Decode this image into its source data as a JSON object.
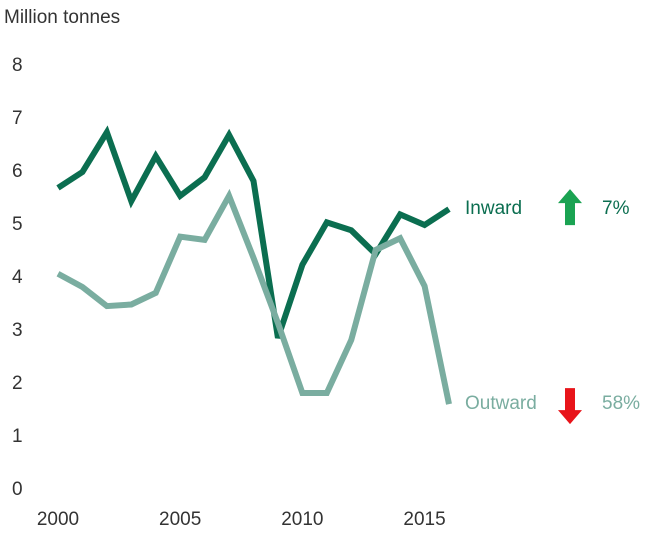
{
  "chart_data": {
    "type": "line",
    "title": "Million tonnes",
    "x": [
      2000,
      2001,
      2002,
      2003,
      2004,
      2005,
      2006,
      2007,
      2008,
      2009,
      2010,
      2011,
      2012,
      2013,
      2014,
      2015,
      2016
    ],
    "xlim": [
      2000,
      2016
    ],
    "xticks": [
      2000,
      2005,
      2010,
      2015
    ],
    "ylim": [
      0,
      8
    ],
    "yticks": [
      0,
      1,
      2,
      3,
      4,
      5,
      6,
      7,
      8
    ],
    "grid": false,
    "series": [
      {
        "name": "Inward",
        "color": "#0b6e50",
        "change": "7%",
        "direction": "up",
        "arrow_color": "#1aa352",
        "values": [
          5.7,
          6.0,
          6.75,
          5.45,
          6.3,
          5.55,
          5.9,
          6.7,
          5.83,
          2.87,
          4.25,
          5.05,
          4.9,
          4.45,
          5.2,
          5.0,
          5.3
        ]
      },
      {
        "name": "Outward",
        "color": "#7aada0",
        "change": "58%",
        "direction": "down",
        "arrow_color": "#e8141a",
        "values": [
          4.08,
          3.83,
          3.47,
          3.5,
          3.72,
          4.78,
          4.72,
          5.55,
          4.38,
          3.15,
          1.83,
          1.83,
          2.83,
          4.53,
          4.75,
          3.85,
          1.62
        ]
      }
    ]
  }
}
